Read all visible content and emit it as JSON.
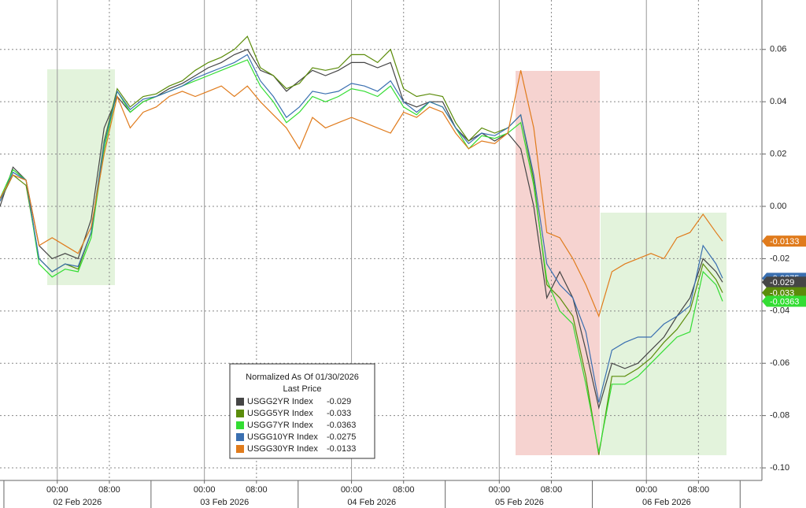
{
  "chart_data": {
    "type": "line",
    "legend_title": "Normalized As Of 01/30/2026",
    "legend_subtitle": "Last Price",
    "x": [
      0,
      2,
      4,
      6,
      8,
      10,
      12,
      14,
      16,
      18,
      20,
      22,
      24,
      26,
      28,
      30,
      32,
      34,
      36,
      38,
      40,
      42,
      44,
      46,
      48,
      50,
      52,
      54,
      56,
      58,
      60,
      62,
      64,
      66,
      68,
      70,
      72,
      74,
      76,
      78,
      80,
      82,
      84,
      86,
      88,
      90,
      92,
      94,
      96,
      98,
      100,
      102,
      104,
      106,
      108,
      110,
      111
    ],
    "xlim": [
      0,
      117.05
    ],
    "xticks": [
      {
        "value": 8.8,
        "label": "00:00"
      },
      {
        "value": 16.8,
        "label": "08:00"
      },
      {
        "value": 31.4,
        "label": "00:00"
      },
      {
        "value": 39.4,
        "label": "08:00"
      },
      {
        "value": 54.0,
        "label": "00:00"
      },
      {
        "value": 62.0,
        "label": "08:00"
      },
      {
        "value": 76.7,
        "label": "00:00"
      },
      {
        "value": 84.7,
        "label": "08:00"
      },
      {
        "value": 99.3,
        "label": "00:00"
      },
      {
        "value": 107.3,
        "label": "08:00"
      }
    ],
    "x_day_ticks": [
      {
        "value": 11.9,
        "label": "02 Feb 2026"
      },
      {
        "value": 34.5,
        "label": "03 Feb 2026"
      },
      {
        "value": 57.1,
        "label": "04 Feb 2026"
      },
      {
        "value": 79.8,
        "label": "05 Feb 2026"
      },
      {
        "value": 102.4,
        "label": "06 Feb 2026"
      }
    ],
    "x_day_bounds": [
      0.6,
      23.2,
      45.8,
      68.4,
      91.0,
      113.7
    ],
    "ylim": [
      -0.1048,
      0.0789
    ],
    "yticks": [
      0.06,
      0.04,
      0.02,
      {
        "value": 0,
        "label": "0.00"
      },
      -0.02,
      -0.04,
      -0.06,
      -0.08,
      {
        "value": -0.1,
        "label": "-0.10"
      }
    ],
    "grid": true,
    "series": [
      {
        "name": "USGG2YR Index",
        "color": "#454545",
        "last": -0.029,
        "values": [
          0.0,
          0.015,
          0.01,
          -0.015,
          -0.02,
          -0.018,
          -0.02,
          -0.005,
          0.03,
          0.042,
          0.036,
          0.04,
          0.042,
          0.045,
          0.047,
          0.05,
          0.053,
          0.055,
          0.058,
          0.06,
          0.052,
          0.05,
          0.044,
          0.048,
          0.052,
          0.05,
          0.052,
          0.055,
          0.055,
          0.053,
          0.055,
          0.04,
          0.038,
          0.04,
          0.04,
          0.03,
          0.025,
          0.028,
          0.025,
          0.028,
          0.022,
          0.0,
          -0.035,
          -0.025,
          -0.035,
          -0.055,
          -0.077,
          -0.06,
          -0.062,
          -0.06,
          -0.055,
          -0.05,
          -0.042,
          -0.035,
          -0.02,
          -0.025,
          -0.029
        ]
      },
      {
        "name": "USGG5YR Index",
        "color": "#5b8c0a",
        "last": -0.033,
        "values": [
          0.002,
          0.012,
          0.008,
          -0.02,
          -0.025,
          -0.022,
          -0.024,
          -0.01,
          0.025,
          0.045,
          0.038,
          0.042,
          0.043,
          0.046,
          0.048,
          0.052,
          0.055,
          0.057,
          0.06,
          0.065,
          0.053,
          0.05,
          0.045,
          0.047,
          0.053,
          0.052,
          0.053,
          0.058,
          0.058,
          0.055,
          0.06,
          0.045,
          0.042,
          0.043,
          0.042,
          0.032,
          0.025,
          0.03,
          0.028,
          0.03,
          0.035,
          0.01,
          -0.03,
          -0.035,
          -0.042,
          -0.065,
          -0.095,
          -0.065,
          -0.065,
          -0.062,
          -0.058,
          -0.052,
          -0.047,
          -0.04,
          -0.022,
          -0.028,
          -0.033
        ]
      },
      {
        "name": "USGG7YR Index",
        "color": "#33dd33",
        "last": -0.0363,
        "values": [
          0.003,
          0.014,
          0.01,
          -0.022,
          -0.027,
          -0.024,
          -0.025,
          -0.012,
          0.022,
          0.044,
          0.036,
          0.04,
          0.042,
          0.044,
          0.046,
          0.048,
          0.05,
          0.052,
          0.054,
          0.056,
          0.046,
          0.04,
          0.032,
          0.036,
          0.042,
          0.04,
          0.042,
          0.045,
          0.044,
          0.042,
          0.046,
          0.038,
          0.035,
          0.04,
          0.038,
          0.03,
          0.022,
          0.027,
          0.026,
          0.028,
          0.032,
          0.008,
          -0.028,
          -0.04,
          -0.045,
          -0.068,
          -0.094,
          -0.068,
          -0.068,
          -0.065,
          -0.06,
          -0.055,
          -0.05,
          -0.048,
          -0.025,
          -0.03,
          -0.0363
        ]
      },
      {
        "name": "USGG10YR Index",
        "color": "#3a6fb0",
        "last": -0.0275,
        "values": [
          0.002,
          0.013,
          0.01,
          -0.02,
          -0.025,
          -0.022,
          -0.023,
          -0.01,
          0.024,
          0.044,
          0.037,
          0.041,
          0.042,
          0.044,
          0.046,
          0.049,
          0.051,
          0.053,
          0.055,
          0.058,
          0.048,
          0.042,
          0.034,
          0.038,
          0.044,
          0.043,
          0.044,
          0.047,
          0.046,
          0.044,
          0.048,
          0.04,
          0.036,
          0.04,
          0.038,
          0.03,
          0.024,
          0.028,
          0.027,
          0.03,
          0.035,
          0.012,
          -0.022,
          -0.03,
          -0.035,
          -0.048,
          -0.075,
          -0.055,
          -0.052,
          -0.05,
          -0.05,
          -0.045,
          -0.042,
          -0.038,
          -0.015,
          -0.022,
          -0.0275
        ]
      },
      {
        "name": "USGG30YR Index",
        "color": "#e07b1c",
        "last": -0.0133,
        "values": [
          0.003,
          0.012,
          0.01,
          -0.015,
          -0.012,
          -0.015,
          -0.018,
          -0.008,
          0.02,
          0.042,
          0.03,
          0.036,
          0.038,
          0.042,
          0.044,
          0.042,
          0.044,
          0.046,
          0.042,
          0.046,
          0.04,
          0.035,
          0.03,
          0.022,
          0.034,
          0.03,
          0.032,
          0.034,
          0.032,
          0.03,
          0.028,
          0.036,
          0.034,
          0.038,
          0.036,
          0.028,
          0.022,
          0.025,
          0.024,
          0.028,
          0.052,
          0.03,
          -0.01,
          -0.012,
          -0.02,
          -0.03,
          -0.042,
          -0.025,
          -0.022,
          -0.02,
          -0.018,
          -0.02,
          -0.012,
          -0.01,
          -0.003,
          -0.01,
          -0.0133
        ]
      }
    ]
  }
}
